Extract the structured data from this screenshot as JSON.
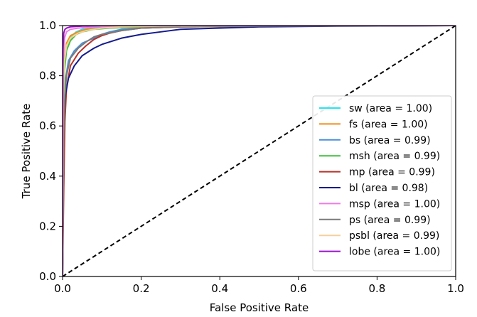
{
  "chart_data": {
    "type": "line",
    "title": "",
    "xlabel": "False Positive Rate",
    "ylabel": "True Positive Rate",
    "xlim": [
      0.0,
      1.0
    ],
    "ylim": [
      0.0,
      1.0
    ],
    "xticks": [
      "0.0",
      "0.2",
      "0.4",
      "0.6",
      "0.8",
      "1.0"
    ],
    "yticks": [
      "0.0",
      "0.2",
      "0.4",
      "0.6",
      "0.8",
      "1.0"
    ],
    "grid": false,
    "legend_position": "lower-right",
    "reference_line": {
      "style": "dashed",
      "color": "#000000",
      "x": [
        0.0,
        1.0
      ],
      "y": [
        0.0,
        1.0
      ]
    },
    "series": [
      {
        "name": "sw (area = 1.00)",
        "color": "#22e5f0",
        "x": [
          0,
          0.002,
          0.005,
          0.01,
          0.02,
          0.035,
          0.05,
          0.08,
          0.12,
          0.2,
          0.4,
          1.0
        ],
        "y": [
          0,
          0.7,
          0.85,
          0.92,
          0.955,
          0.975,
          0.985,
          0.99,
          0.995,
          0.998,
          1.0,
          1.0
        ]
      },
      {
        "name": "fs (area = 1.00)",
        "color": "#f28c18",
        "x": [
          0,
          0.002,
          0.005,
          0.01,
          0.02,
          0.04,
          0.06,
          0.1,
          0.15,
          0.25,
          0.5,
          1.0
        ],
        "y": [
          0,
          0.72,
          0.86,
          0.93,
          0.96,
          0.975,
          0.985,
          0.99,
          0.995,
          0.998,
          1.0,
          1.0
        ]
      },
      {
        "name": "bs (area = 0.99)",
        "color": "#4a90d9",
        "x": [
          0,
          0.003,
          0.007,
          0.015,
          0.03,
          0.05,
          0.08,
          0.1,
          0.12,
          0.15,
          0.2,
          0.3,
          0.5,
          1.0
        ],
        "y": [
          0,
          0.6,
          0.78,
          0.86,
          0.9,
          0.93,
          0.95,
          0.965,
          0.975,
          0.985,
          0.99,
          0.995,
          0.998,
          1.0
        ]
      },
      {
        "name": "msh (area = 0.99)",
        "color": "#3dbf3d",
        "x": [
          0,
          0.002,
          0.005,
          0.01,
          0.02,
          0.035,
          0.05,
          0.08,
          0.12,
          0.2,
          0.4,
          1.0
        ],
        "y": [
          0,
          0.65,
          0.82,
          0.9,
          0.94,
          0.965,
          0.975,
          0.985,
          0.99,
          0.995,
          1.0,
          1.0
        ]
      },
      {
        "name": "mp (area = 0.99)",
        "color": "#b8322a",
        "x": [
          0,
          0.003,
          0.006,
          0.01,
          0.02,
          0.04,
          0.06,
          0.08,
          0.1,
          0.12,
          0.15,
          0.2,
          0.3,
          0.5,
          1.0
        ],
        "y": [
          0,
          0.35,
          0.62,
          0.75,
          0.84,
          0.89,
          0.92,
          0.945,
          0.96,
          0.97,
          0.98,
          0.99,
          0.995,
          0.998,
          1.0
        ]
      },
      {
        "name": "bl (area = 0.98)",
        "color": "#141a8c",
        "x": [
          0,
          0.003,
          0.007,
          0.015,
          0.03,
          0.05,
          0.08,
          0.1,
          0.15,
          0.2,
          0.25,
          0.3,
          0.4,
          0.5,
          0.7,
          1.0
        ],
        "y": [
          0,
          0.6,
          0.72,
          0.79,
          0.84,
          0.88,
          0.91,
          0.925,
          0.95,
          0.965,
          0.975,
          0.985,
          0.99,
          0.995,
          0.998,
          1.0
        ]
      },
      {
        "name": "msp (area = 1.00)",
        "color": "#f07ae8",
        "x": [
          0,
          0.002,
          0.005,
          0.01,
          0.02,
          0.04,
          0.08,
          0.15,
          0.3,
          1.0
        ],
        "y": [
          0,
          0.85,
          0.95,
          0.975,
          0.985,
          0.99,
          0.995,
          0.998,
          1.0,
          1.0
        ]
      },
      {
        "name": "ps (area = 0.99)",
        "color": "#7a7a7a",
        "x": [
          0,
          0.003,
          0.006,
          0.01,
          0.02,
          0.04,
          0.06,
          0.08,
          0.1,
          0.15,
          0.2,
          0.3,
          0.5,
          1.0
        ],
        "y": [
          0,
          0.55,
          0.72,
          0.8,
          0.87,
          0.91,
          0.935,
          0.955,
          0.965,
          0.98,
          0.99,
          0.995,
          0.998,
          1.0
        ]
      },
      {
        "name": "psbl (area = 0.99)",
        "color": "#f5cf9a",
        "x": [
          0,
          0.002,
          0.005,
          0.01,
          0.02,
          0.04,
          0.06,
          0.1,
          0.15,
          0.25,
          0.5,
          1.0
        ],
        "y": [
          0,
          0.7,
          0.86,
          0.92,
          0.95,
          0.97,
          0.98,
          0.99,
          0.995,
          0.998,
          1.0,
          1.0
        ]
      },
      {
        "name": "lobe (area = 1.00)",
        "color": "#9b12c9",
        "x": [
          0,
          0.001,
          0.003,
          0.006,
          0.01,
          0.02,
          0.05,
          0.1,
          0.2,
          1.0
        ],
        "y": [
          0,
          0.9,
          0.97,
          0.985,
          0.99,
          0.995,
          0.998,
          1.0,
          1.0,
          1.0
        ]
      }
    ]
  }
}
